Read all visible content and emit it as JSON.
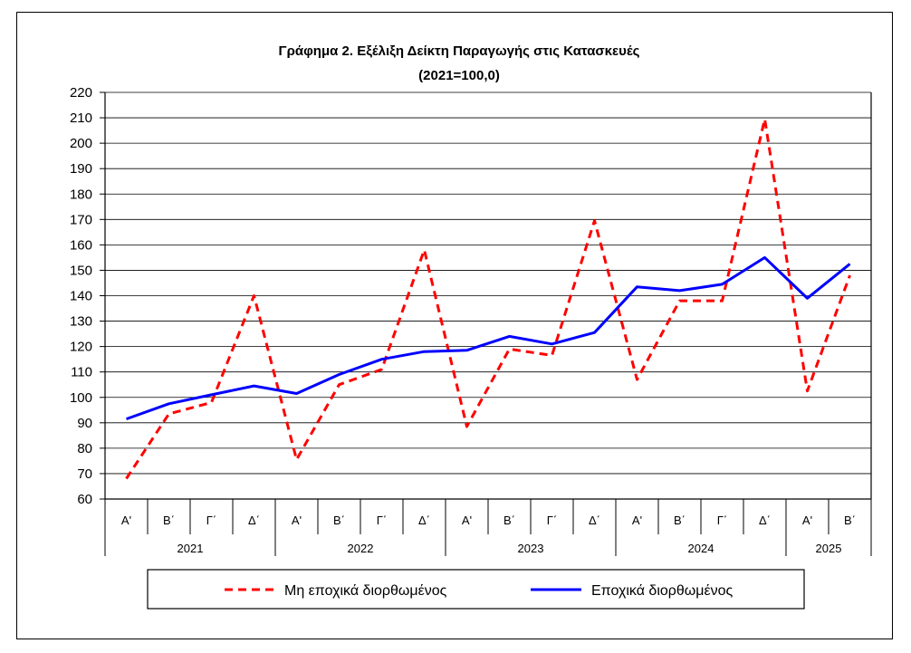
{
  "chart_data": {
    "type": "line",
    "title": "Γράφημα 2. Εξέλιξη  Δείκτη  Παραγωγής  στις Κατασκευές",
    "subtitle": "(2021=100,0)",
    "xlabel": "",
    "ylabel": "",
    "ylim": [
      60,
      220
    ],
    "yticks": [
      60,
      70,
      80,
      90,
      100,
      110,
      120,
      130,
      140,
      150,
      160,
      170,
      180,
      190,
      200,
      210,
      220
    ],
    "grid": true,
    "legend_position": "bottom",
    "categories": [
      "Α'",
      "Β΄",
      "Γ΄",
      "Δ΄",
      "Α'",
      "Β΄",
      "Γ΄",
      "Δ΄",
      "Α'",
      "Β΄",
      "Γ΄",
      "Δ΄",
      "Α'",
      "Β΄",
      "Γ΄",
      "Δ΄",
      "Α'",
      "Β΄"
    ],
    "years": [
      {
        "label": "2021",
        "quarters": 4
      },
      {
        "label": "2022",
        "quarters": 4
      },
      {
        "label": "2023",
        "quarters": 4
      },
      {
        "label": "2024",
        "quarters": 4
      },
      {
        "label": "2025",
        "quarters": 2
      }
    ],
    "series": [
      {
        "name": "Μη εποχικά διορθωμένος",
        "color": "#ff0000",
        "style": "dashed",
        "values": [
          68.0,
          93.5,
          98.0,
          140.0,
          75.5,
          105.0,
          111.0,
          158.0,
          88.5,
          119.0,
          116.5,
          169.5,
          107.0,
          138.0,
          138.0,
          209.5,
          102.5,
          148.0
        ]
      },
      {
        "name": "Εποχικά διορθωμένος",
        "color": "#0000ff",
        "style": "solid",
        "values": [
          91.5,
          97.5,
          101.0,
          104.5,
          101.5,
          109.0,
          115.0,
          118.0,
          118.5,
          124.0,
          121.0,
          125.5,
          143.5,
          142.0,
          144.5,
          155.0,
          139.0,
          152.5
        ]
      }
    ]
  }
}
